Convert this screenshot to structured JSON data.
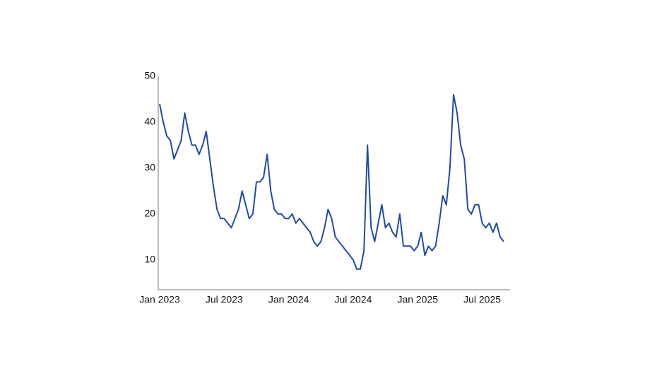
{
  "chart_data": {
    "type": "line",
    "categories": [
      "Jan 2023",
      null,
      null,
      null,
      null,
      null,
      null,
      null,
      null,
      null,
      null,
      null,
      null,
      null,
      null,
      null,
      null,
      null,
      "Jul 2023",
      null,
      null,
      null,
      null,
      null,
      null,
      null,
      null,
      null,
      null,
      null,
      null,
      null,
      null,
      null,
      null,
      null,
      "Jan 2024",
      null,
      null,
      null,
      null,
      null,
      null,
      null,
      null,
      null,
      null,
      null,
      null,
      null,
      null,
      null,
      null,
      null,
      "Jul 2024",
      null,
      null,
      null,
      null,
      null,
      null,
      null,
      null,
      null,
      null,
      null,
      null,
      null,
      null,
      null,
      null,
      null,
      "Jan 2025",
      null,
      null,
      null,
      null,
      null,
      null,
      null,
      null,
      null,
      null,
      null,
      null,
      null,
      null,
      null,
      null,
      null,
      "Jul 2025",
      null,
      null,
      null,
      null,
      null,
      null
    ],
    "values": [
      44,
      40,
      37,
      36,
      32,
      34,
      36,
      42,
      38,
      35,
      35,
      33,
      35,
      38,
      32,
      26,
      21,
      19,
      19,
      18,
      17,
      19,
      21,
      25,
      22,
      19,
      20,
      27,
      27,
      28,
      33,
      25,
      21,
      20,
      20,
      19,
      19,
      20,
      18,
      19,
      18,
      17,
      16,
      14,
      13,
      14,
      17,
      21,
      19,
      15,
      14,
      13,
      12,
      11,
      10,
      8,
      8,
      12,
      35,
      17,
      14,
      18,
      22,
      17,
      18,
      16,
      15,
      20,
      13,
      13,
      13,
      12,
      13,
      16,
      11,
      13,
      12,
      13,
      18,
      24,
      22,
      30,
      46,
      42,
      35,
      32,
      21,
      20,
      22,
      22,
      18,
      17,
      18,
      16,
      18,
      15,
      14
    ],
    "color": "#1f4aa8",
    "ylim": [
      3.5,
      50
    ],
    "yticks": [
      10,
      20,
      30,
      40,
      50
    ]
  }
}
